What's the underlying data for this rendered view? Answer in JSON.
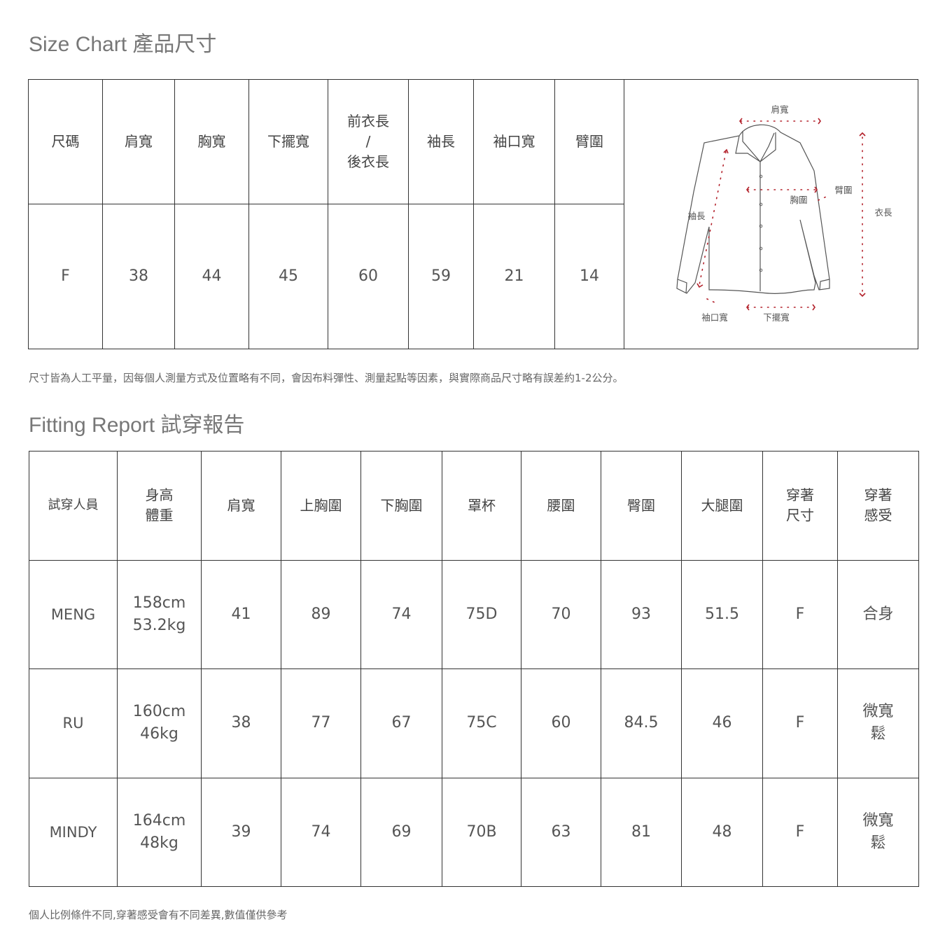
{
  "size_chart": {
    "title": "Size Chart 產品尺寸",
    "headers": [
      "尺碼",
      "肩寬",
      "胸寬",
      "下擺寬",
      "前衣長\n/\n後衣長",
      "袖長",
      "袖口寬",
      "臂圍"
    ],
    "row": [
      "F",
      "38",
      "44",
      "45",
      "60",
      "59",
      "21",
      "14"
    ],
    "diagram_labels": {
      "shoulder": "肩寬",
      "chest": "胸圍",
      "arm": "臂圍",
      "sleeve": "袖長",
      "length": "衣長",
      "cuff": "袖口寬",
      "hem": "下擺寬"
    },
    "accent_color": "#b3202a",
    "note": "尺寸皆為人工平量，因每個人測量方式及位置略有不同，會因布料彈性、測量起點等因素，與實際商品尺寸略有誤差約1-2公分。"
  },
  "fitting_report": {
    "title": "Fitting Report 試穿報告",
    "headers": [
      "試穿人員",
      "身高\n體重",
      "肩寬",
      "上胸圍",
      "下胸圍",
      "罩杯",
      "腰圍",
      "臀圍",
      "大腿圍",
      "穿著\n尺寸",
      "穿著\n感受"
    ],
    "rows": [
      [
        "MENG",
        "158cm\n53.2kg",
        "41",
        "89",
        "74",
        "75D",
        "70",
        "93",
        "51.5",
        "F",
        "合身"
      ],
      [
        "RU",
        "160cm\n46kg",
        "38",
        "77",
        "67",
        "75C",
        "60",
        "84.5",
        "46",
        "F",
        "微寬\n鬆"
      ],
      [
        "MINDY",
        "164cm\n48kg",
        "39",
        "74",
        "69",
        "70B",
        "63",
        "81",
        "48",
        "F",
        "微寬\n鬆"
      ]
    ],
    "note": "個人比例條件不同,穿著感受會有不同差異,數值僅供參考"
  }
}
